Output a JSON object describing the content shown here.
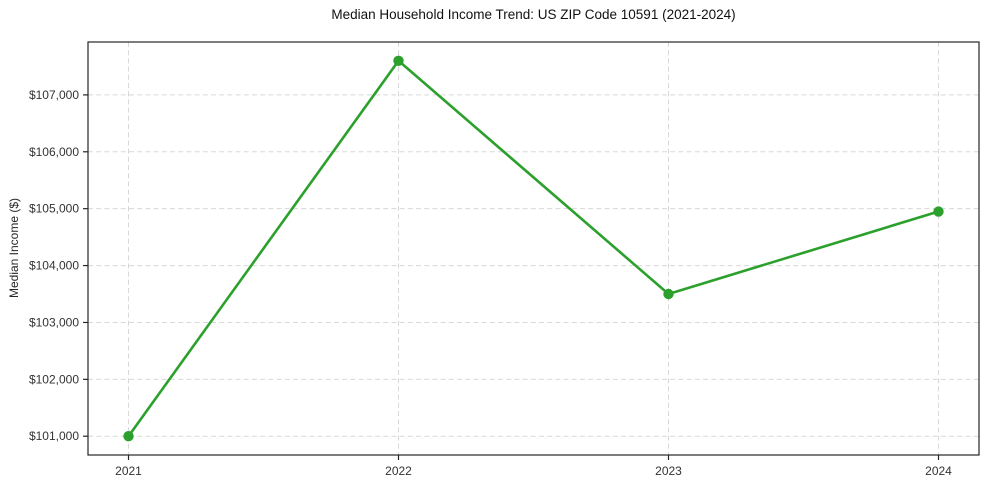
{
  "chart": {
    "title": "Median Household Income Trend: US ZIP Code 10591 (2021-2024)",
    "ylabel": "Median Income ($)"
  },
  "chart_data": {
    "type": "line",
    "title": "Median Household Income Trend: US ZIP Code 10591 (2021-2024)",
    "xlabel": "",
    "ylabel": "Median Income ($)",
    "categories": [
      "2021",
      "2022",
      "2023",
      "2024"
    ],
    "values": [
      101000,
      107600,
      103500,
      104950
    ],
    "yticks": [
      101000,
      102000,
      103000,
      104000,
      105000,
      106000,
      107000
    ],
    "y_tick_labels": [
      "$101,000",
      "$102,000",
      "$103,000",
      "$104,000",
      "$105,000",
      "$106,000",
      "$107,000"
    ],
    "ylim": [
      100670,
      107930
    ],
    "xlim": [
      -0.15,
      3.15
    ],
    "grid": true,
    "grid_style": "dashed",
    "legend": "none",
    "colors": {
      "line": "#2ca02c",
      "marker": "#2ca02c",
      "grid": "#d8d8d8",
      "axis": "#262626",
      "tick_label": "#333333",
      "background": "#ffffff"
    }
  }
}
